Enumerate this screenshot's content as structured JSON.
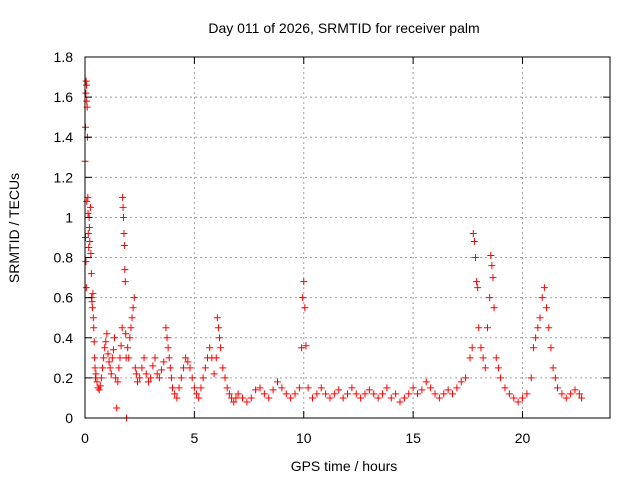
{
  "chart_data": {
    "type": "scatter",
    "title": "Day 011 of 2026, SRMTID for receiver palm",
    "xlabel": "GPS time / hours",
    "ylabel": "SRMTID / TECUs",
    "xlim": [
      0,
      24
    ],
    "ylim": [
      0,
      1.8
    ],
    "xticks": [
      0,
      5,
      10,
      15,
      20
    ],
    "xtick_labels": [
      "0",
      "5",
      "10",
      "15",
      "20"
    ],
    "yticks": [
      0,
      0.2,
      0.4,
      0.6,
      0.8,
      1,
      1.2,
      1.4,
      1.6,
      1.8
    ],
    "ytick_labels": [
      "0",
      "0.2",
      "0.4",
      "0.6",
      "0.8",
      "1",
      "1.2",
      "1.4",
      "1.6",
      "1.8"
    ],
    "grid": true,
    "marker": "+",
    "color": "#ff0000",
    "series": [
      {
        "name": "SRMTID",
        "points": [
          [
            0.0,
            1.28
          ],
          [
            0.02,
            1.45
          ],
          [
            0.04,
            1.62
          ],
          [
            0.05,
            1.68
          ],
          [
            0.07,
            1.66
          ],
          [
            0.08,
            1.58
          ],
          [
            0.1,
            1.55
          ],
          [
            0.11,
            1.4
          ],
          [
            0.13,
            1.1
          ],
          [
            0.14,
            1.02
          ],
          [
            0.02,
            0.9
          ],
          [
            0.04,
            0.78
          ],
          [
            0.06,
            0.65
          ],
          [
            0.08,
            1.08
          ],
          [
            0.15,
            0.92
          ],
          [
            0.17,
            0.85
          ],
          [
            0.19,
            1.0
          ],
          [
            0.2,
            0.95
          ],
          [
            0.22,
            0.88
          ],
          [
            0.25,
            1.05
          ],
          [
            0.27,
            0.82
          ],
          [
            0.29,
            0.72
          ],
          [
            0.3,
            0.6
          ],
          [
            0.32,
            0.58
          ],
          [
            0.34,
            0.55
          ],
          [
            0.36,
            0.62
          ],
          [
            0.38,
            0.5
          ],
          [
            0.4,
            0.45
          ],
          [
            0.42,
            0.38
          ],
          [
            0.44,
            0.3
          ],
          [
            0.46,
            0.25
          ],
          [
            0.48,
            0.2
          ],
          [
            0.5,
            0.22
          ],
          [
            0.55,
            0.18
          ],
          [
            0.6,
            0.15
          ],
          [
            0.65,
            0.14
          ],
          [
            0.7,
            0.16
          ],
          [
            0.75,
            0.2
          ],
          [
            0.8,
            0.25
          ],
          [
            0.85,
            0.3
          ],
          [
            0.9,
            0.35
          ],
          [
            0.95,
            0.38
          ],
          [
            1.0,
            0.42
          ],
          [
            1.05,
            0.32
          ],
          [
            1.1,
            0.28
          ],
          [
            1.15,
            0.25
          ],
          [
            1.2,
            0.22
          ],
          [
            1.25,
            0.3
          ],
          [
            1.3,
            0.34
          ],
          [
            1.35,
            0.4
          ],
          [
            1.4,
            0.2
          ],
          [
            1.45,
            0.05
          ],
          [
            1.5,
            0.18
          ],
          [
            1.55,
            0.25
          ],
          [
            1.6,
            0.3
          ],
          [
            1.65,
            0.36
          ],
          [
            1.7,
            0.45
          ],
          [
            1.72,
            1.1
          ],
          [
            1.74,
            1.05
          ],
          [
            1.76,
            1.0
          ],
          [
            1.78,
            0.92
          ],
          [
            1.8,
            0.86
          ],
          [
            1.82,
            0.74
          ],
          [
            1.84,
            0.68
          ],
          [
            1.86,
            0.42
          ],
          [
            1.88,
            0.3
          ],
          [
            1.9,
            0.0
          ],
          [
            1.95,
            0.35
          ],
          [
            2.0,
            0.3
          ],
          [
            2.05,
            0.4
          ],
          [
            2.1,
            0.45
          ],
          [
            2.15,
            0.5
          ],
          [
            2.2,
            0.55
          ],
          [
            2.25,
            0.6
          ],
          [
            2.3,
            0.25
          ],
          [
            2.35,
            0.22
          ],
          [
            2.4,
            0.18
          ],
          [
            2.5,
            0.2
          ],
          [
            2.6,
            0.25
          ],
          [
            2.7,
            0.3
          ],
          [
            2.8,
            0.22
          ],
          [
            2.9,
            0.18
          ],
          [
            3.0,
            0.2
          ],
          [
            3.1,
            0.26
          ],
          [
            3.2,
            0.3
          ],
          [
            3.3,
            0.22
          ],
          [
            3.4,
            0.2
          ],
          [
            3.5,
            0.24
          ],
          [
            3.6,
            0.28
          ],
          [
            3.7,
            0.45
          ],
          [
            3.75,
            0.4
          ],
          [
            3.8,
            0.35
          ],
          [
            3.85,
            0.3
          ],
          [
            3.9,
            0.25
          ],
          [
            3.95,
            0.2
          ],
          [
            4.0,
            0.15
          ],
          [
            4.1,
            0.12
          ],
          [
            4.2,
            0.1
          ],
          [
            4.3,
            0.15
          ],
          [
            4.4,
            0.2
          ],
          [
            4.5,
            0.25
          ],
          [
            4.6,
            0.3
          ],
          [
            4.7,
            0.28
          ],
          [
            4.8,
            0.25
          ],
          [
            4.9,
            0.2
          ],
          [
            5.0,
            0.15
          ],
          [
            5.1,
            0.12
          ],
          [
            5.2,
            0.1
          ],
          [
            5.3,
            0.15
          ],
          [
            5.4,
            0.2
          ],
          [
            5.5,
            0.25
          ],
          [
            5.6,
            0.3
          ],
          [
            5.7,
            0.35
          ],
          [
            5.8,
            0.3
          ],
          [
            5.9,
            0.22
          ],
          [
            6.0,
            0.3
          ],
          [
            6.05,
            0.5
          ],
          [
            6.1,
            0.45
          ],
          [
            6.15,
            0.4
          ],
          [
            6.2,
            0.35
          ],
          [
            6.3,
            0.25
          ],
          [
            6.4,
            0.2
          ],
          [
            6.5,
            0.15
          ],
          [
            6.6,
            0.12
          ],
          [
            6.7,
            0.1
          ],
          [
            6.8,
            0.08
          ],
          [
            6.9,
            0.1
          ],
          [
            7.0,
            0.12
          ],
          [
            7.2,
            0.1
          ],
          [
            7.4,
            0.08
          ],
          [
            7.6,
            0.1
          ],
          [
            7.8,
            0.14
          ],
          [
            8.0,
            0.15
          ],
          [
            8.2,
            0.12
          ],
          [
            8.4,
            0.1
          ],
          [
            8.6,
            0.14
          ],
          [
            8.8,
            0.18
          ],
          [
            9.0,
            0.15
          ],
          [
            9.2,
            0.12
          ],
          [
            9.4,
            0.1
          ],
          [
            9.6,
            0.12
          ],
          [
            9.8,
            0.15
          ],
          [
            9.9,
            0.35
          ],
          [
            9.95,
            0.6
          ],
          [
            10.0,
            0.68
          ],
          [
            10.05,
            0.55
          ],
          [
            10.1,
            0.36
          ],
          [
            10.2,
            0.15
          ],
          [
            10.4,
            0.1
          ],
          [
            10.6,
            0.12
          ],
          [
            10.8,
            0.15
          ],
          [
            11.0,
            0.12
          ],
          [
            11.2,
            0.1
          ],
          [
            11.4,
            0.12
          ],
          [
            11.6,
            0.14
          ],
          [
            11.8,
            0.1
          ],
          [
            12.0,
            0.12
          ],
          [
            12.2,
            0.15
          ],
          [
            12.4,
            0.12
          ],
          [
            12.6,
            0.1
          ],
          [
            12.8,
            0.12
          ],
          [
            13.0,
            0.14
          ],
          [
            13.2,
            0.12
          ],
          [
            13.4,
            0.1
          ],
          [
            13.6,
            0.12
          ],
          [
            13.8,
            0.15
          ],
          [
            14.0,
            0.1
          ],
          [
            14.2,
            0.12
          ],
          [
            14.4,
            0.08
          ],
          [
            14.6,
            0.1
          ],
          [
            14.8,
            0.12
          ],
          [
            15.0,
            0.15
          ],
          [
            15.2,
            0.12
          ],
          [
            15.4,
            0.14
          ],
          [
            15.6,
            0.18
          ],
          [
            15.8,
            0.15
          ],
          [
            16.0,
            0.12
          ],
          [
            16.2,
            0.1
          ],
          [
            16.4,
            0.12
          ],
          [
            16.6,
            0.14
          ],
          [
            16.8,
            0.12
          ],
          [
            17.0,
            0.15
          ],
          [
            17.2,
            0.18
          ],
          [
            17.4,
            0.2
          ],
          [
            17.6,
            0.3
          ],
          [
            17.7,
            0.35
          ],
          [
            17.75,
            0.92
          ],
          [
            17.8,
            0.88
          ],
          [
            17.85,
            0.8
          ],
          [
            17.9,
            0.68
          ],
          [
            17.95,
            0.65
          ],
          [
            18.0,
            0.45
          ],
          [
            18.1,
            0.35
          ],
          [
            18.2,
            0.3
          ],
          [
            18.3,
            0.25
          ],
          [
            18.4,
            0.45
          ],
          [
            18.5,
            0.6
          ],
          [
            18.55,
            0.81
          ],
          [
            18.6,
            0.76
          ],
          [
            18.65,
            0.7
          ],
          [
            18.7,
            0.55
          ],
          [
            18.8,
            0.3
          ],
          [
            18.9,
            0.25
          ],
          [
            19.0,
            0.2
          ],
          [
            19.2,
            0.15
          ],
          [
            19.4,
            0.12
          ],
          [
            19.6,
            0.1
          ],
          [
            19.8,
            0.08
          ],
          [
            20.0,
            0.1
          ],
          [
            20.2,
            0.12
          ],
          [
            20.4,
            0.2
          ],
          [
            20.5,
            0.35
          ],
          [
            20.6,
            0.4
          ],
          [
            20.7,
            0.45
          ],
          [
            20.8,
            0.5
          ],
          [
            20.9,
            0.6
          ],
          [
            21.0,
            0.65
          ],
          [
            21.1,
            0.55
          ],
          [
            21.2,
            0.45
          ],
          [
            21.3,
            0.35
          ],
          [
            21.4,
            0.25
          ],
          [
            21.5,
            0.2
          ],
          [
            21.6,
            0.15
          ],
          [
            21.8,
            0.12
          ],
          [
            22.0,
            0.1
          ],
          [
            22.2,
            0.12
          ],
          [
            22.4,
            0.14
          ],
          [
            22.6,
            0.12
          ],
          [
            22.7,
            0.1
          ]
        ]
      }
    ]
  }
}
